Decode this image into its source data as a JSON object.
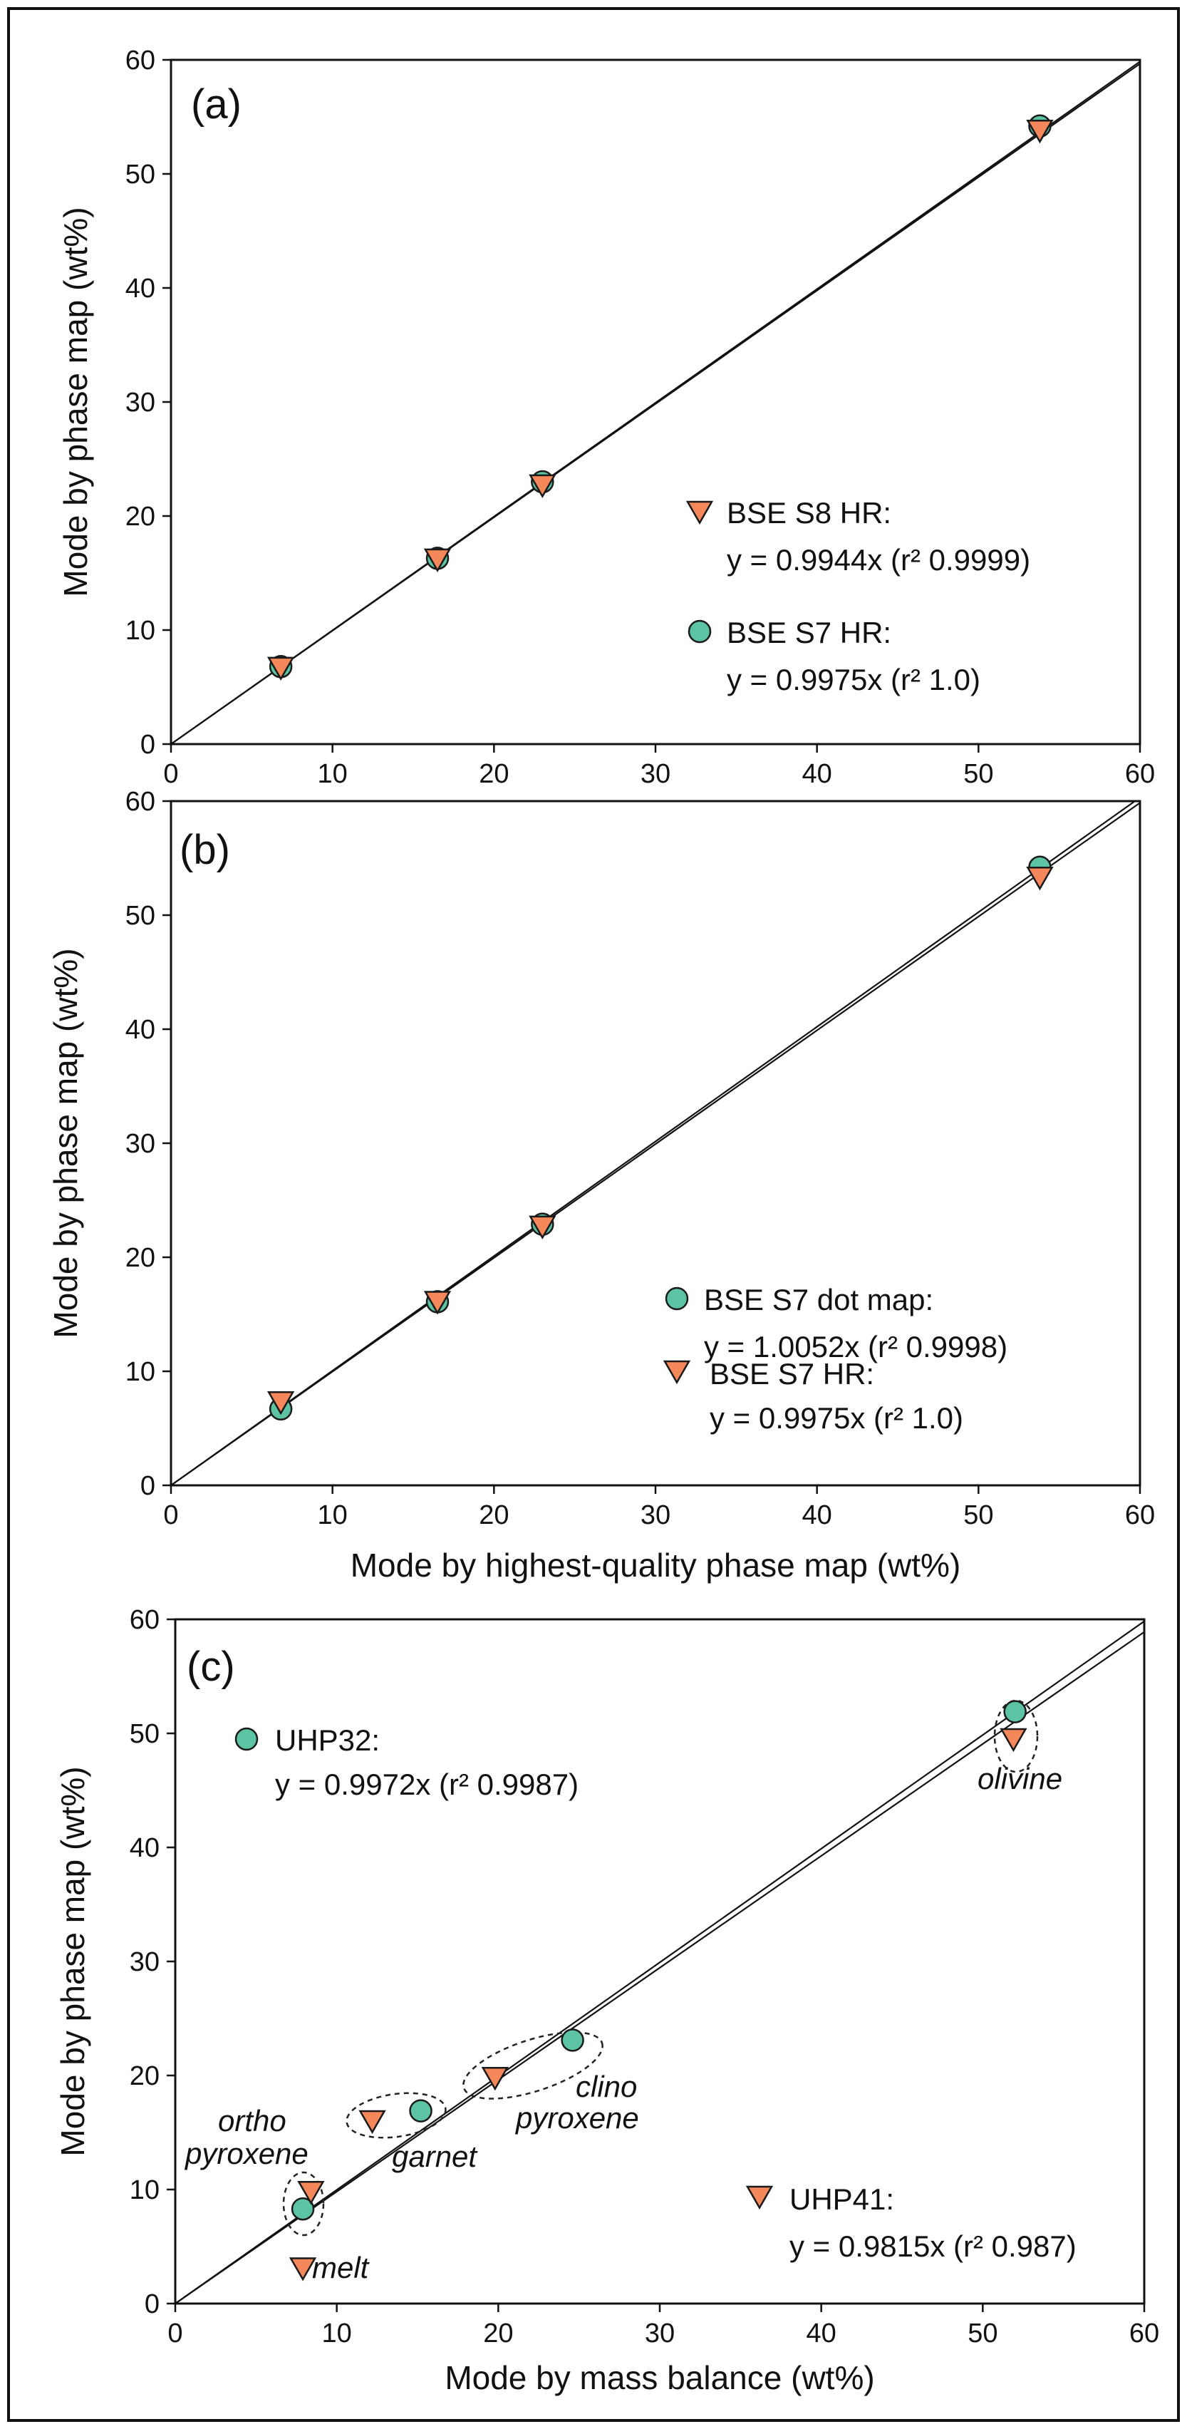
{
  "colors": {
    "circle_fill": "#5cc4a4",
    "triangle_fill": "#f4885a",
    "stroke": "#1a1a1a"
  },
  "chart_data": [
    {
      "type": "scatter",
      "panel_label": "(a)",
      "xlabel": "",
      "ylabel": "Mode by phase map (wt%)",
      "xlim": [
        0,
        60
      ],
      "ylim": [
        0,
        60
      ],
      "xticks": [
        "0",
        "10",
        "20",
        "30",
        "40",
        "50",
        "60"
      ],
      "yticks": [
        "0",
        "10",
        "20",
        "30",
        "40",
        "50",
        "60"
      ],
      "series": [
        {
          "name": "BSE S7 HR",
          "marker": "circle",
          "x": [
            6.8,
            16.5,
            23.0,
            53.8
          ],
          "y": [
            6.8,
            16.3,
            23.0,
            54.2
          ],
          "legend_name": "BSE S7 HR:",
          "legend_eq": "y = 0.9975x (r² 1.0)",
          "slope": 0.9975
        },
        {
          "name": "BSE S8 HR",
          "marker": "triangle",
          "x": [
            6.8,
            16.5,
            23.0,
            53.8
          ],
          "y": [
            6.7,
            16.2,
            22.7,
            53.8
          ],
          "legend_name": "BSE S8 HR:",
          "legend_eq": "y = 0.9944x (r² 0.9999)",
          "slope": 0.9944
        }
      ],
      "legend_order": [
        1,
        0
      ],
      "annotations": []
    },
    {
      "type": "scatter",
      "panel_label": "(b)",
      "xlabel": "Mode by highest-quality phase map (wt%)",
      "ylabel": "Mode by phase map (wt%)",
      "xlim": [
        0,
        60
      ],
      "ylim": [
        0,
        60
      ],
      "xticks": [
        "0",
        "10",
        "20",
        "30",
        "40",
        "50",
        "60"
      ],
      "yticks": [
        "0",
        "10",
        "20",
        "30",
        "40",
        "50",
        "60"
      ],
      "series": [
        {
          "name": "BSE S7 dot map",
          "marker": "circle",
          "x": [
            6.8,
            16.5,
            23.0,
            53.8
          ],
          "y": [
            6.7,
            16.1,
            22.9,
            54.2
          ],
          "legend_name": "BSE S7 dot map:",
          "legend_eq": "y = 1.0052x (r² 0.9998)",
          "slope": 1.0052
        },
        {
          "name": "BSE S7 HR",
          "marker": "triangle",
          "x": [
            6.8,
            16.5,
            23.0,
            53.8
          ],
          "y": [
            7.3,
            16.1,
            22.7,
            53.3
          ],
          "legend_name": "BSE S7 HR:",
          "legend_eq": "y = 0.9975x (r² 1.0)",
          "slope": 0.9975
        }
      ],
      "legend_order": [
        0,
        1
      ],
      "annotations": []
    },
    {
      "type": "scatter",
      "panel_label": "(c)",
      "xlabel": "Mode by mass balance (wt%)",
      "ylabel": "Mode by phase map (wt%)",
      "xlim": [
        0,
        60
      ],
      "ylim": [
        0,
        60
      ],
      "xticks": [
        "0",
        "10",
        "20",
        "30",
        "40",
        "50",
        "60"
      ],
      "yticks": [
        "0",
        "10",
        "20",
        "30",
        "40",
        "50",
        "60"
      ],
      "series": [
        {
          "name": "UHP32",
          "marker": "circle",
          "x": [
            7.9,
            15.2,
            24.6,
            52.0
          ],
          "y": [
            8.3,
            16.9,
            23.1,
            51.9
          ],
          "legend_name": "UHP32:",
          "legend_eq": "y = 0.9972x (r² 0.9987)",
          "slope": 0.9972
        },
        {
          "name": "UHP41",
          "marker": "triangle",
          "x": [
            7.9,
            8.4,
            12.2,
            19.8,
            51.9
          ],
          "y": [
            3.1,
            9.8,
            16.0,
            19.8,
            49.5
          ],
          "legend_name": "UHP41:",
          "legend_eq": "y = 0.9815x (r² 0.987)",
          "slope": 0.9815
        }
      ],
      "legend_order": [
        0,
        1
      ],
      "annotations": [
        "olivine",
        "clino",
        "pyroxene",
        "garnet",
        "ortho",
        "pyroxene",
        "melt"
      ]
    }
  ]
}
